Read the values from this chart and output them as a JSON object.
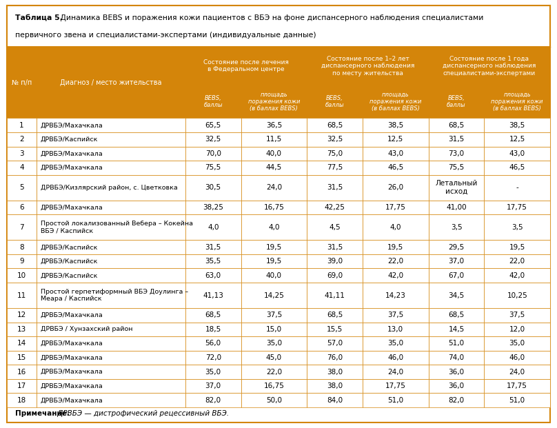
{
  "title_bold": "Таблица 5.",
  "title_rest": " Динамика BEBS и поражения кожи пациентов с ВБЭ на фоне диспансерного наблюдения специалистами первичного звена и специалистами-экспертами (индивидуальные данные)",
  "title_line1_rest": " Динамика BEBS и поражения кожи пациентов с ВБЭ на фоне диспансерного наблюдения специалистами",
  "title_line2": "первичного звена и специалистами-экспертами (индивидуальные данные)",
  "header_orange": "#D4850A",
  "header_text_color": "#FFFFFF",
  "border_color": "#D4850A",
  "col_header1": "Состояние после лечения\nв Федеральном центре",
  "col_header2": "Состояние после 1–2 лет\nдиспансерного наблюдения\nпо месту жительства",
  "col_header3": "Состояние после 1 года\nдиспансерного наблюдения\nспециалистами-экспертами",
  "col_sub1": "BEBS,\nбаллы",
  "col_sub2": "площадь\nпоражения кожи\n(в баллах BEBS)",
  "col_num": "№ п/п",
  "col_diag": "Диагноз / место жительства",
  "rows": [
    [
      1,
      "ДРВБЭ/Махачкала",
      "65,5",
      "36,5",
      "68,5",
      "38,5",
      "68,5",
      "38,5"
    ],
    [
      2,
      "ДРВБЭ/Каспийск",
      "32,5",
      "11,5",
      "32,5",
      "12,5",
      "31,5",
      "12,5"
    ],
    [
      3,
      "ДРВБЭ/Махачкала",
      "70,0",
      "40,0",
      "75,0",
      "43,0",
      "73,0",
      "43,0"
    ],
    [
      4,
      "ДРВБЭ/Махачкала",
      "75,5",
      "44,5",
      "77,5",
      "46,5",
      "75,5",
      "46,5"
    ],
    [
      5,
      "ДРВБЭ/Кизлярский район, с. Цветковка",
      "30,5",
      "24,0",
      "31,5",
      "26,0",
      "Летальный\nисход",
      "-"
    ],
    [
      6,
      "ДРВБЭ/Махачкала",
      "38,25",
      "16,75",
      "42,25",
      "17,75",
      "41,00",
      "17,75"
    ],
    [
      7,
      "Простой локализованный Вебера – Кокейна\nВБЭ / Каспийск",
      "4,0",
      "4,0",
      "4,5",
      "4,0",
      "3,5",
      "3,5"
    ],
    [
      8,
      "ДРВБЭ/Каспийск",
      "31,5",
      "19,5",
      "31,5",
      "19,5",
      "29,5",
      "19,5"
    ],
    [
      9,
      "ДРВБЭ/Каспийск",
      "35,5",
      "19,5",
      "39,0",
      "22,0",
      "37,0",
      "22,0"
    ],
    [
      10,
      "ДРВБЭ/Каспийск",
      "63,0",
      "40,0",
      "69,0",
      "42,0",
      "67,0",
      "42,0"
    ],
    [
      11,
      "Простой герпетиформный ВБЭ Доулинга –\nМеара / Каспийск",
      "41,13",
      "14,25",
      "41,11",
      "14,23",
      "34,5",
      "10,25"
    ],
    [
      12,
      "ДРВБЭ/Махачкала",
      "68,5",
      "37,5",
      "68,5",
      "37,5",
      "68,5",
      "37,5"
    ],
    [
      13,
      "ДРВБЭ / Хунзахский район",
      "18,5",
      "15,0",
      "15,5",
      "13,0",
      "14,5",
      "12,0"
    ],
    [
      14,
      "ДРВБЭ/Махачкала",
      "56,0",
      "35,0",
      "57,0",
      "35,0",
      "51,0",
      "35,0"
    ],
    [
      15,
      "ДРВБЭ/Махачкала",
      "72,0",
      "45,0",
      "76,0",
      "46,0",
      "74,0",
      "46,0"
    ],
    [
      16,
      "ДРВБЭ/Махачкала",
      "35,0",
      "22,0",
      "38,0",
      "24,0",
      "36,0",
      "24,0"
    ],
    [
      17,
      "ДРВБЭ/Махачкала",
      "37,0",
      "16,75",
      "38,0",
      "17,75",
      "36,0",
      "17,75"
    ],
    [
      18,
      "ДРВБЭ/Махачкала",
      "82,0",
      "50,0",
      "84,0",
      "51,0",
      "82,0",
      "51,0"
    ]
  ],
  "tall_rows": [
    4,
    6,
    10
  ],
  "note_bold": "Примечание.",
  "note_italic": " ДРВБЭ — дистрофический рецессивный ВБЭ.",
  "background": "#FFFFFF",
  "outer_border_color": "#D4850A",
  "fig_width": 8.08,
  "fig_height": 6.21,
  "dpi": 100
}
